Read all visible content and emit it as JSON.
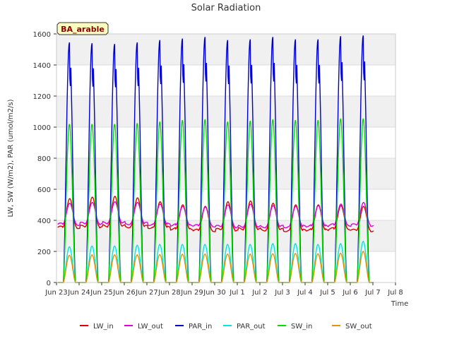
{
  "chart_data": {
    "type": "line",
    "title": "Solar Radiation",
    "xlabel": "Time",
    "ylabel": "LW, SW (W/m2), PAR (umol/m2/s)",
    "site_badge": "BA_arable",
    "ylim": [
      0,
      1600
    ],
    "yticks": [
      0,
      200,
      400,
      600,
      800,
      1000,
      1200,
      1400,
      1600
    ],
    "xlim_days": [
      0,
      15
    ],
    "xticks": [
      "Jun 23",
      "Jun 24",
      "Jun 25",
      "Jun 26",
      "Jun 27",
      "Jun 28",
      "Jun 29",
      "Jun 30",
      "Jul 1",
      "Jul 2",
      "Jul 3",
      "Jul 4",
      "Jul 5",
      "Jul 6",
      "Jul 7",
      "Jul 8"
    ],
    "grid": true,
    "legend_position": "bottom",
    "days": [
      "Jun 23",
      "Jun 24",
      "Jun 25",
      "Jun 26",
      "Jun 27",
      "Jun 28",
      "Jun 29",
      "Jun 30",
      "Jul 1",
      "Jul 2",
      "Jul 3",
      "Jul 4",
      "Jul 5",
      "Jul 6"
    ],
    "series": [
      {
        "name": "LW_in",
        "color": "#dd0000",
        "night": [
          355,
          360,
          365,
          360,
          355,
          345,
          335,
          340,
          345,
          340,
          335,
          340,
          345,
          335
        ],
        "peak": [
          540,
          550,
          555,
          545,
          520,
          500,
          490,
          520,
          525,
          510,
          500,
          500,
          495,
          490
        ]
      },
      {
        "name": "LW_out",
        "color": "#dd00dd",
        "night": [
          375,
          380,
          385,
          380,
          375,
          370,
          365,
          360,
          360,
          360,
          360,
          365,
          370,
          370
        ],
        "peak": [
          510,
          515,
          520,
          515,
          505,
          490,
          485,
          500,
          505,
          495,
          490,
          495,
          505,
          515
        ]
      },
      {
        "name": "PAR_in",
        "color": "#0000cc",
        "night": [
          0,
          0,
          0,
          0,
          0,
          0,
          0,
          0,
          0,
          0,
          0,
          0,
          0,
          0
        ],
        "peak": [
          1545,
          1540,
          1535,
          1545,
          1560,
          1570,
          1580,
          1560,
          1565,
          1580,
          1565,
          1565,
          1585,
          1590
        ]
      },
      {
        "name": "PAR_out",
        "color": "#00e5e5",
        "night": [
          0,
          0,
          0,
          0,
          0,
          0,
          0,
          0,
          0,
          0,
          0,
          0,
          0,
          0
        ],
        "peak": [
          230,
          235,
          235,
          240,
          245,
          245,
          245,
          245,
          245,
          250,
          250,
          245,
          250,
          265
        ]
      },
      {
        "name": "SW_in",
        "color": "#00dd00",
        "night": [
          0,
          0,
          0,
          0,
          0,
          0,
          0,
          0,
          0,
          0,
          0,
          0,
          0,
          0
        ],
        "peak": [
          1020,
          1020,
          1020,
          1025,
          1035,
          1045,
          1050,
          1035,
          1040,
          1050,
          1045,
          1045,
          1055,
          1055
        ]
      },
      {
        "name": "SW_out",
        "color": "#e59400",
        "night": [
          0,
          0,
          0,
          0,
          0,
          0,
          0,
          0,
          0,
          0,
          0,
          0,
          0,
          0
        ],
        "peak": [
          175,
          178,
          178,
          178,
          180,
          182,
          183,
          183,
          183,
          185,
          187,
          185,
          188,
          200
        ]
      }
    ]
  }
}
